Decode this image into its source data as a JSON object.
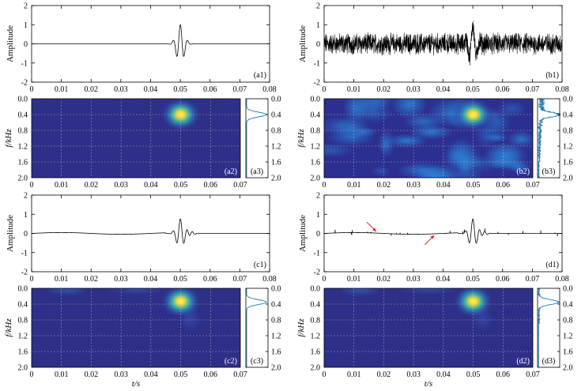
{
  "chart_data": [
    {
      "id": "a1",
      "type": "line",
      "ylabel": "Amplitude",
      "ylim": [
        -2,
        2
      ],
      "xlim": [
        0,
        0.08
      ],
      "yticks": [
        "2",
        "1",
        "0",
        "-1",
        "-2"
      ],
      "xticks": [
        "0",
        "0.01",
        "0.02",
        "0.03",
        "0.04",
        "0.05",
        "0.06",
        "0.07",
        "0.08"
      ],
      "label": "(a1)",
      "signal": {
        "kind": "wavelet",
        "center": 0.05,
        "amplitude": 1.0,
        "noise": 0
      }
    },
    {
      "id": "b1",
      "type": "line",
      "ylabel": "Amplitude",
      "ylim": [
        -2,
        2
      ],
      "xlim": [
        0,
        0.08
      ],
      "yticks": [
        "2",
        "1",
        "0",
        "-1",
        "-2"
      ],
      "xticks": [
        "0",
        "0.01",
        "0.02",
        "0.03",
        "0.04",
        "0.05",
        "0.06",
        "0.07",
        "0.08"
      ],
      "label": "(b1)",
      "signal": {
        "kind": "wavelet",
        "center": 0.05,
        "amplitude": 1.0,
        "noise": 0.45
      }
    },
    {
      "id": "a2",
      "type": "heatmap",
      "ylabel": "f/kHz",
      "ylim": [
        0,
        2
      ],
      "xlim": [
        0,
        0.07
      ],
      "yticks": [
        "0.0",
        "0.4",
        "0.8",
        "1.2",
        "1.6",
        "2.0"
      ],
      "xticks": [
        "0",
        "0.01",
        "0.02",
        "0.03",
        "0.04",
        "0.05",
        "0.06",
        "0.07"
      ],
      "label": "(a2)",
      "peak": {
        "t": 0.05,
        "f": 0.4
      },
      "background": "#2e2f88",
      "texture": "none"
    },
    {
      "id": "a3",
      "type": "line",
      "ylim": [
        0,
        2
      ],
      "yticks": [
        "0.0",
        "0.4",
        "0.8",
        "1.2",
        "1.6",
        "2.0"
      ],
      "label": "(a3)",
      "spectrum": "clean"
    },
    {
      "id": "b2",
      "type": "heatmap",
      "ylabel": "f/kHz",
      "ylim": [
        0,
        2
      ],
      "xlim": [
        0,
        0.07
      ],
      "yticks": [
        "0.0",
        "0.4",
        "0.8",
        "1.2",
        "1.6",
        "2.0"
      ],
      "xticks": [
        "0",
        "0.01",
        "0.02",
        "0.03",
        "0.04",
        "0.05",
        "0.06",
        "0.07"
      ],
      "label": "(b2)",
      "peak": {
        "t": 0.05,
        "f": 0.4
      },
      "background": "#2c2f90",
      "texture": "noisy"
    },
    {
      "id": "b3",
      "type": "line",
      "ylim": [
        0,
        2
      ],
      "yticks": [
        "0.0",
        "0.4",
        "0.8",
        "1.2",
        "1.6",
        "2.0"
      ],
      "label": "(b3)",
      "spectrum": "noisy"
    },
    {
      "id": "c1",
      "type": "line",
      "ylabel": "Amplitude",
      "ylim": [
        -2,
        2
      ],
      "xlim": [
        0,
        0.08
      ],
      "yticks": [
        "2",
        "1",
        "0",
        "-1",
        "-2"
      ],
      "xticks": [
        "0",
        "0.01",
        "0.02",
        "0.03",
        "0.04",
        "0.05",
        "0.06",
        "0.07",
        "0.08"
      ],
      "label": "(c1)",
      "signal": {
        "kind": "wavelet-ringing",
        "center": 0.05,
        "amplitude": 0.75,
        "noise": 0
      }
    },
    {
      "id": "d1",
      "type": "line",
      "ylabel": "Amplitude",
      "ylim": [
        -2,
        2
      ],
      "xlim": [
        0,
        0.08
      ],
      "yticks": [
        "2",
        "1",
        "0",
        "-1",
        "-2"
      ],
      "xticks": [
        "0",
        "0.01",
        "0.02",
        "0.03",
        "0.04",
        "0.05",
        "0.06",
        "0.07",
        "0.08"
      ],
      "label": "(d1)",
      "signal": {
        "kind": "wavelet-ringing",
        "center": 0.05,
        "amplitude": 0.75,
        "noise": 0
      },
      "annotations": [
        {
          "kind": "arrow",
          "t": 0.0175,
          "a": 0.1,
          "color": "#d62020"
        },
        {
          "kind": "arrow",
          "t": 0.037,
          "a": -0.1,
          "color": "#d62020"
        }
      ]
    },
    {
      "id": "c2",
      "type": "heatmap",
      "ylabel": "f/kHz",
      "xlabel": "t/s",
      "ylim": [
        0,
        2
      ],
      "xlim": [
        0,
        0.07
      ],
      "yticks": [
        "0.0",
        "0.4",
        "0.8",
        "1.2",
        "1.6",
        "2.0"
      ],
      "xticks": [
        "0",
        "0.01",
        "0.02",
        "0.03",
        "0.04",
        "0.05",
        "0.06",
        "0.07"
      ],
      "label": "(c2)",
      "peak": {
        "t": 0.05,
        "f": 0.33
      },
      "background": "#2e2f88",
      "texture": "smear"
    },
    {
      "id": "c3",
      "type": "line",
      "ylim": [
        0,
        2
      ],
      "yticks": [
        "0.0",
        "0.4",
        "0.8",
        "1.2",
        "1.6",
        "2.0"
      ],
      "label": "(c3)",
      "spectrum": "clean"
    },
    {
      "id": "d2",
      "type": "heatmap",
      "ylabel": "f/kHz",
      "xlabel": "t/s",
      "ylim": [
        0,
        2
      ],
      "xlim": [
        0,
        0.07
      ],
      "yticks": [
        "0.0",
        "0.4",
        "0.8",
        "1.2",
        "1.6",
        "2.0"
      ],
      "xticks": [
        "0",
        "0.01",
        "0.02",
        "0.03",
        "0.04",
        "0.05",
        "0.06",
        "0.07"
      ],
      "label": "(d2)",
      "peak": {
        "t": 0.05,
        "f": 0.33
      },
      "background": "#2e2f88",
      "texture": "smear"
    },
    {
      "id": "d3",
      "type": "line",
      "ylim": [
        0,
        2
      ],
      "yticks": [
        "0.0",
        "0.4",
        "0.8",
        "1.2",
        "1.6",
        "2.0"
      ],
      "label": "(d3)",
      "spectrum": "slightly-noisy"
    }
  ],
  "colors": {
    "line": "#000000",
    "spectrum": "#1f77b4",
    "grid": "#c8c8c8",
    "arrow": "#d62020"
  }
}
